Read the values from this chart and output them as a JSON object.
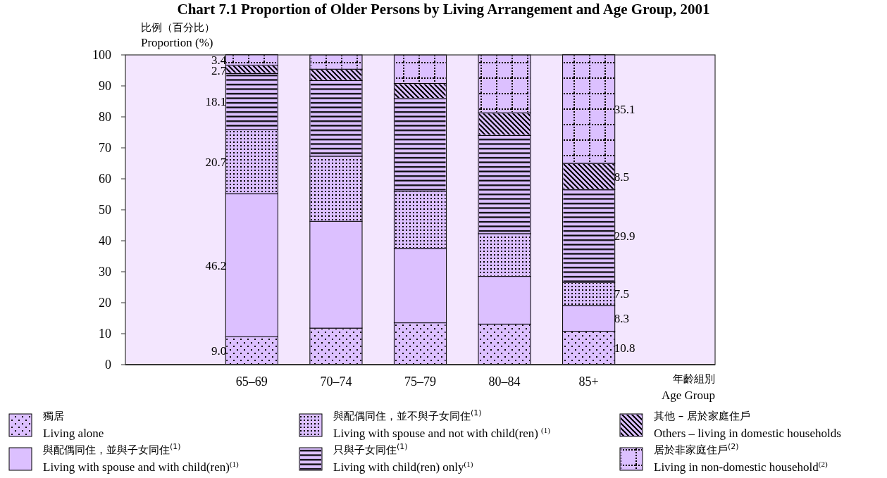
{
  "chart_data": {
    "type": "bar",
    "stacked": true,
    "title": "Chart 7.1  Proportion of Older Persons by Living Arrangement and Age Group, 2001",
    "ylabel": "比例（百分比）\nProportion (%)",
    "xlabel": "年齡組別\nAge Group",
    "categories": [
      "65–69",
      "70–74",
      "75–79",
      "80–84",
      "85+"
    ],
    "ylim": [
      0,
      100
    ],
    "yticks": [
      0,
      10,
      20,
      30,
      40,
      50,
      60,
      70,
      80,
      90,
      100
    ],
    "legend": "bottom",
    "series": [
      {
        "name": "獨居\nLiving alone",
        "color": "#dcc0ff",
        "values": [
          9.0,
          11.8,
          13.5,
          13.1,
          10.8
        ],
        "value_labels": [
          "9.0",
          null,
          null,
          null,
          "10.8"
        ]
      },
      {
        "name": "與配偶同住，並與子女同住$^{(1)}$\nLiving with spouse and with child(ren)$^{(1)}$",
        "color": "#dcc0ff",
        "values": [
          46.2,
          34.5,
          24.0,
          15.4,
          8.3
        ],
        "value_labels": [
          "46.2",
          null,
          null,
          null,
          "8.3"
        ]
      },
      {
        "name": "與配偶同住，並不與子女同住$^{(1)}$\nLiving with spouse and not with child(ren) $^{(1)}$",
        "color": "#dcc0ff",
        "values": [
          20.7,
          21.0,
          18.5,
          13.8,
          7.5
        ],
        "value_labels": [
          "20.7",
          null,
          null,
          null,
          "7.5"
        ]
      },
      {
        "name": "只與子女同住$^{(1)}$\nLiving with child(ren) only$^{(1)}$",
        "color": "#dcc0ff",
        "values": [
          18.1,
          24.4,
          29.9,
          31.7,
          29.9
        ],
        "value_labels": [
          "18.1",
          null,
          null,
          null,
          "29.9"
        ]
      },
      {
        "name": "其他 – 居於家庭住戶\nOthers – living in domestic households",
        "color": "#dcc0ff",
        "values": [
          2.7,
          3.7,
          4.9,
          7.3,
          8.5
        ],
        "value_labels": [
          "2.7",
          null,
          null,
          null,
          "8.5"
        ]
      },
      {
        "name": "居於非家庭住戶$^{(2)}$\nLiving in non-domestic household$^{(2)}$",
        "color": "#dcc0ff",
        "values": [
          3.4,
          4.6,
          9.2,
          18.7,
          35.1
        ],
        "value_labels": [
          "3.4",
          null,
          null,
          null,
          "35.1"
        ]
      }
    ]
  }
}
